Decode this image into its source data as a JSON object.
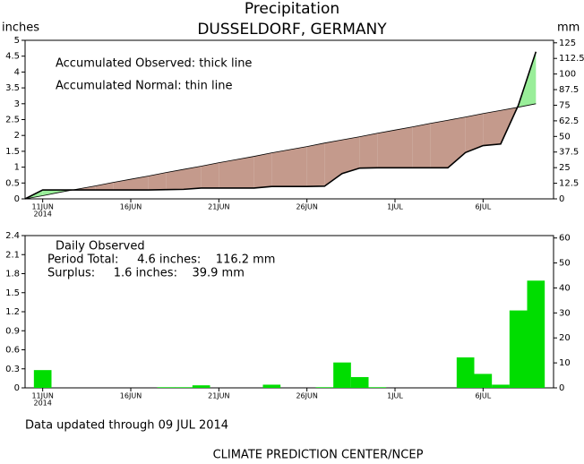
{
  "title": "Precipitation",
  "subtitle": "DUSSELDORF, GERMANY",
  "footer_note": "Data updated through 09 JUL 2014",
  "credit": "CLIMATE PREDICTION CENTER/NCEP",
  "chart_data": [
    {
      "type": "cumulative",
      "ylabel": "inches",
      "y2label": "mm",
      "annotations": [
        "Accumulated Observed: thick line",
        "Accumulated Normal: thin line"
      ],
      "x": [
        0,
        1,
        2,
        3,
        4,
        5,
        6,
        7,
        8,
        9,
        10,
        11,
        12,
        13,
        14,
        15,
        16,
        17,
        18,
        19,
        20,
        21,
        22,
        23,
        24,
        25,
        26,
        27,
        28,
        29
      ],
      "xlim": [
        0,
        30
      ],
      "xticks": [
        {
          "value": 1,
          "label": "11JUN"
        },
        {
          "value": 6,
          "label": "16JUN"
        },
        {
          "value": 11,
          "label": "21JUN"
        },
        {
          "value": 16,
          "label": "26JUN"
        },
        {
          "value": 21,
          "label": "1JUL"
        },
        {
          "value": 26,
          "label": "6JUL"
        }
      ],
      "year_label": "2014",
      "ylim": [
        0,
        5
      ],
      "yticks": [
        0,
        0.5,
        1,
        1.5,
        2,
        2.5,
        3,
        3.5,
        4,
        4.5,
        5
      ],
      "y2lim": [
        0,
        127
      ],
      "y2ticks": [
        0,
        12.5,
        25,
        37.5,
        50,
        62.5,
        75,
        87.5,
        100,
        112.5,
        125
      ],
      "surplus_color": "#99ee99",
      "deficit_color": "#c49a8c",
      "series": [
        {
          "name": "Accumulated Observed",
          "color": "#000000",
          "line_width": 1.6,
          "values": [
            0,
            0.28,
            0.28,
            0.28,
            0.28,
            0.28,
            0.28,
            0.28,
            0.29,
            0.3,
            0.34,
            0.34,
            0.34,
            0.34,
            0.39,
            0.39,
            0.39,
            0.4,
            0.8,
            0.97,
            0.98,
            0.98,
            0.98,
            0.98,
            0.98,
            1.46,
            1.68,
            1.73,
            2.95,
            4.64
          ]
        },
        {
          "name": "Accumulated Normal",
          "color": "#000000",
          "line_width": 0.8,
          "values": [
            0,
            0.1,
            0.21,
            0.31,
            0.41,
            0.52,
            0.62,
            0.72,
            0.83,
            0.93,
            1.03,
            1.14,
            1.24,
            1.34,
            1.45,
            1.55,
            1.65,
            1.76,
            1.86,
            1.96,
            2.07,
            2.17,
            2.27,
            2.38,
            2.48,
            2.58,
            2.69,
            2.79,
            2.89,
            3.0
          ]
        }
      ]
    },
    {
      "type": "bar",
      "annotations": [
        "Daily Observed",
        "Period Total:     4.6 inches:    116.2 mm",
        "Surplus:     1.6 inches:    39.9 mm"
      ],
      "x": [
        1,
        2,
        3,
        4,
        5,
        6,
        7,
        8,
        9,
        10,
        11,
        12,
        13,
        14,
        15,
        16,
        17,
        18,
        19,
        20,
        21,
        22,
        23,
        24,
        25,
        26,
        27,
        28,
        29
      ],
      "xlim": [
        0,
        30
      ],
      "xticks": [
        {
          "value": 1,
          "label": "11JUN"
        },
        {
          "value": 6,
          "label": "16JUN"
        },
        {
          "value": 11,
          "label": "21JUN"
        },
        {
          "value": 16,
          "label": "26JUN"
        },
        {
          "value": 21,
          "label": "1JUL"
        },
        {
          "value": 26,
          "label": "6JUL"
        }
      ],
      "year_label": "2014",
      "ylim": [
        0,
        2.4
      ],
      "yticks": [
        0,
        0.3,
        0.6,
        0.9,
        1.2,
        1.5,
        1.8,
        2.1,
        2.4
      ],
      "y2lim": [
        0,
        60.96
      ],
      "y2ticks": [
        0,
        10,
        20,
        30,
        40,
        50,
        60
      ],
      "color": "#00dd00",
      "values": [
        0.28,
        0,
        0,
        0,
        0,
        0,
        0,
        0.01,
        0.01,
        0.04,
        0,
        0,
        0,
        0.05,
        0,
        0,
        0.01,
        0.4,
        0.17,
        0.01,
        0,
        0,
        0,
        0,
        0.48,
        0.22,
        0.05,
        1.22,
        1.69
      ]
    }
  ]
}
